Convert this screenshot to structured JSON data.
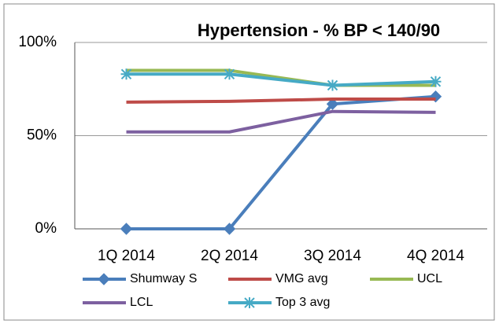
{
  "chart_data": {
    "type": "line",
    "title": "Hypertension - % BP < 140/90",
    "categories": [
      "1Q 2014",
      "2Q 2014",
      "3Q 2014",
      "4Q 2014"
    ],
    "series": [
      {
        "name": "Shumway S",
        "color": "#4a7ebb",
        "marker": "diamond",
        "values": [
          0,
          0,
          67,
          71
        ]
      },
      {
        "name": "VMG avg",
        "color": "#be4b48",
        "values": [
          68,
          68.4,
          69.6,
          69.6
        ]
      },
      {
        "name": "UCL",
        "color": "#98b954",
        "values": [
          85,
          85,
          77,
          77
        ]
      },
      {
        "name": "LCL",
        "color": "#7d60a0",
        "values": [
          52,
          52,
          63,
          62.5
        ]
      },
      {
        "name": "Top 3 avg",
        "color": "#46aac5",
        "marker": "star",
        "values": [
          83,
          83,
          77,
          79
        ]
      }
    ],
    "ylim": [
      0,
      100
    ],
    "yticks": [
      {
        "value": 0,
        "label": "0%"
      },
      {
        "value": 50,
        "label": "50%"
      },
      {
        "value": 100,
        "label": "100%"
      }
    ],
    "grid": true,
    "legend": "bottom"
  }
}
